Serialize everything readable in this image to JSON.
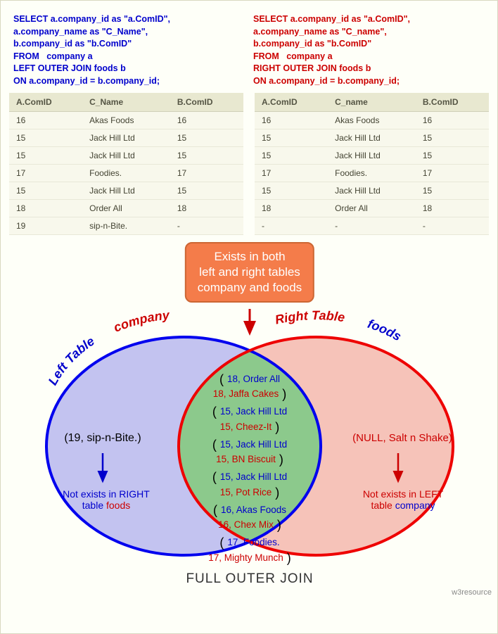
{
  "sql_left": "SELECT a.company_id as \"a.ComID\",\na.company_name as \"C_Name\",\nb.company_id as \"b.ComID\"\nFROM   company a\nLEFT OUTER JOIN foods b\nON a.company_id = b.company_id;",
  "sql_right": "SELECT a.company_id as \"a.ComID\",\na.company_name as \"C_name\",\nb.company_id as \"b.ComID\"\nFROM   company a\nRIGHT OUTER JOIN foods b\nON a.company_id = b.company_id;",
  "left_table": {
    "columns": [
      "A.ComID",
      "C_Name",
      "B.ComID"
    ],
    "rows": [
      [
        "16",
        "Akas Foods",
        "16"
      ],
      [
        "15",
        "Jack Hill Ltd",
        "15"
      ],
      [
        "15",
        "Jack Hill Ltd",
        "15"
      ],
      [
        "17",
        "Foodies.",
        "17"
      ],
      [
        "15",
        "Jack Hill Ltd",
        "15"
      ],
      [
        "18",
        "Order All",
        "18"
      ],
      [
        "19",
        "sip-n-Bite.",
        "-"
      ]
    ]
  },
  "right_table": {
    "columns": [
      "A.ComID",
      "C_name",
      "B.ComID"
    ],
    "rows": [
      [
        "16",
        "Akas Foods",
        "16"
      ],
      [
        "15",
        "Jack Hill Ltd",
        "15"
      ],
      [
        "15",
        "Jack Hill Ltd",
        "15"
      ],
      [
        "17",
        "Foodies.",
        "17"
      ],
      [
        "15",
        "Jack Hill Ltd",
        "15"
      ],
      [
        "18",
        "Order All",
        "18"
      ],
      [
        "-",
        "-",
        "-"
      ]
    ]
  },
  "callout": {
    "line1": "Exists in both",
    "line2": "left and right tables",
    "line3": "company and foods"
  },
  "venn": {
    "left_label_prefix": "Left Table",
    "left_label_name": "company",
    "right_label_prefix": "Right Table",
    "right_label_name": "foods",
    "left_color": "#0000ee",
    "right_color": "#ee0000",
    "left_fill": "#b8b8f0",
    "right_fill": "#f0b8b0",
    "intersection_fill": "#88c888",
    "left_only_text": "(19, sip-n-Bite.)",
    "right_only_text": "(NULL, Salt n Shake)",
    "not_exists_left_prefix": "Not exists in RIGHT",
    "not_exists_left_table_word": "table",
    "not_exists_left_name": "foods",
    "not_exists_right_prefix": "Not exists in LEFT",
    "not_exists_right_table_word": "table",
    "not_exists_right_name": "company"
  },
  "intersection_pairs": [
    {
      "l1": "18, Order All",
      "l2": "18, Jaffa Cakes"
    },
    {
      "l1": "15, Jack Hill Ltd",
      "l2": "15, Cheez-It"
    },
    {
      "l1": "15, Jack Hill Ltd",
      "l2": "15, BN Biscuit"
    },
    {
      "l1": "15, Jack Hill Ltd",
      "l2": "15, Pot Rice"
    },
    {
      "l1": "16, Akas Foods",
      "l2": "16, Chex Mix"
    },
    {
      "l1": "17, Foodies.",
      "l2": "17, Mighty Munch"
    }
  ],
  "title": "FULL OUTER JOIN",
  "attribution": "w3resource"
}
